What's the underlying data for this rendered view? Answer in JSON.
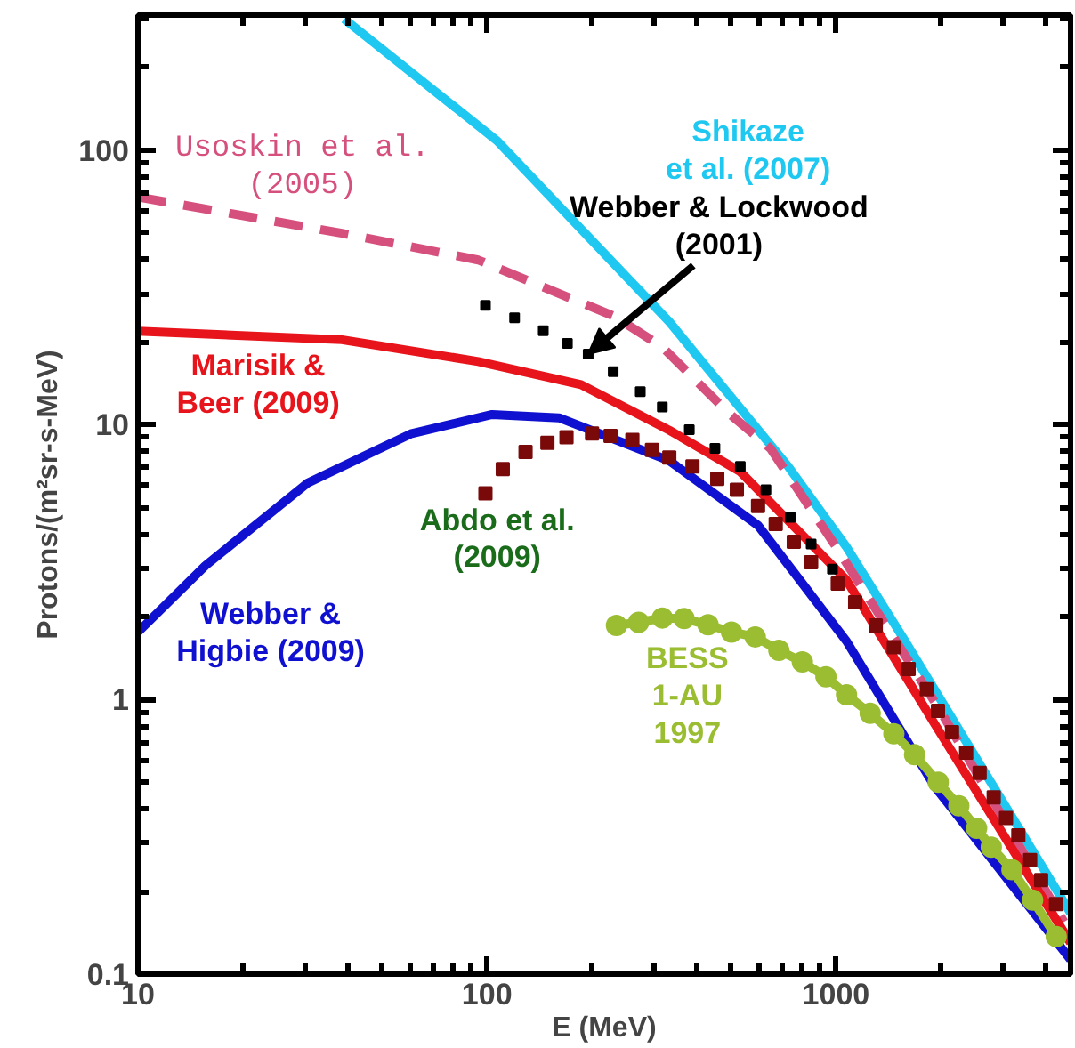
{
  "chart_data": {
    "type": "line",
    "xlabel": "E (MeV)",
    "ylabel": "Protons/(m²sr-s-MeV)",
    "log": "xy",
    "grid": false,
    "xlim": [
      10,
      4700
    ],
    "ylim": [
      0.1,
      310
    ],
    "xticks": [
      10,
      100,
      1000
    ],
    "yticks": [
      0.1,
      1,
      10,
      100
    ],
    "series": [
      {
        "name": "Shikaze\net al. (2007)",
        "color": "#1ec8f0",
        "line_style": "solid",
        "x": [
          39,
          107,
          333,
          729,
          1070,
          1578,
          2831,
          4700
        ],
        "values": [
          300,
          108,
          23.7,
          7.06,
          3.6,
          1.63,
          0.48,
          0.167
        ]
      },
      {
        "name": "Usoskin et al.\n(2005)",
        "color": "#d6507e",
        "line_style": "dashed",
        "x": [
          10,
          38.4,
          94.4,
          232,
          318,
          490,
          649,
          1000,
          2000,
          4500
        ],
        "values": [
          67.5,
          49.8,
          39.8,
          24.8,
          19.2,
          11.1,
          8.2,
          3.6,
          0.9,
          0.155
        ]
      },
      {
        "name": "Marisik &\nBeer (2009)",
        "color": "#e8141c",
        "line_style": "solid",
        "x": [
          10,
          38.4,
          94.4,
          186,
          333,
          532,
          1072,
          1923,
          4700
        ],
        "values": [
          21.9,
          20.4,
          17,
          14,
          9.55,
          6.75,
          2.72,
          0.81,
          0.13
        ]
      },
      {
        "name": "Webber & Lockwood\n(2001)",
        "type": "scatter",
        "color": "#000000",
        "marker": "square",
        "x": [
          99,
          120,
          145,
          170,
          195,
          230,
          275,
          318,
          380,
          450,
          532,
          630,
          740,
          849,
          977
        ],
        "values": [
          27.2,
          24.5,
          22,
          19.8,
          18.1,
          15.6,
          13.2,
          11.6,
          9.6,
          8.2,
          7.06,
          5.8,
          4.6,
          3.68,
          2.98
        ]
      },
      {
        "name": "Abdo et al.\n(2009)",
        "type": "scatter",
        "color": "#7a0a0a",
        "marker": "square",
        "x": [
          99,
          111,
          129,
          149,
          169,
          200,
          226,
          261,
          297,
          333,
          388,
          457,
          520,
          598,
          672,
          757,
          849,
          1012,
          1135,
          1300,
          1465,
          1615,
          1820,
          1960,
          2150,
          2360,
          2580,
          2831,
          3070,
          3330,
          3600,
          3870,
          4270
        ],
        "values": [
          5.63,
          6.9,
          7.96,
          8.6,
          9.0,
          9.3,
          9.1,
          8.8,
          8.1,
          7.6,
          7.06,
          6.35,
          5.8,
          5.06,
          4.35,
          3.75,
          3.16,
          2.64,
          2.26,
          1.86,
          1.55,
          1.29,
          1.09,
          0.91,
          0.76,
          0.64,
          0.54,
          0.44,
          0.37,
          0.32,
          0.26,
          0.22,
          0.18
        ]
      },
      {
        "name": "Webber &\nHigbie (2009)",
        "color": "#1010d0",
        "line_style": "solid",
        "x": [
          10,
          15.6,
          30.7,
          60.5,
          103.5,
          161,
          333,
          598,
          1072,
          1923,
          4700
        ],
        "values": [
          1.76,
          3.07,
          6.15,
          9.27,
          10.9,
          10.6,
          7.4,
          4.3,
          1.63,
          0.48,
          0.113
        ]
      },
      {
        "name": "BESS\n1-AU\n1997",
        "color": "#9abd32",
        "line_style": "solid",
        "marker": "circle",
        "x": [
          235,
          272,
          318,
          367,
          430,
          502,
          587,
          686,
          801,
          936,
          1072,
          1253,
          1465,
          1679,
          1963,
          2249,
          2529,
          2786,
          3193,
          3659,
          4276
        ],
        "values": [
          1.86,
          1.91,
          1.98,
          1.97,
          1.87,
          1.76,
          1.69,
          1.51,
          1.37,
          1.21,
          1.04,
          0.89,
          0.75,
          0.63,
          0.5,
          0.41,
          0.34,
          0.29,
          0.24,
          0.186,
          0.137
        ]
      }
    ]
  }
}
